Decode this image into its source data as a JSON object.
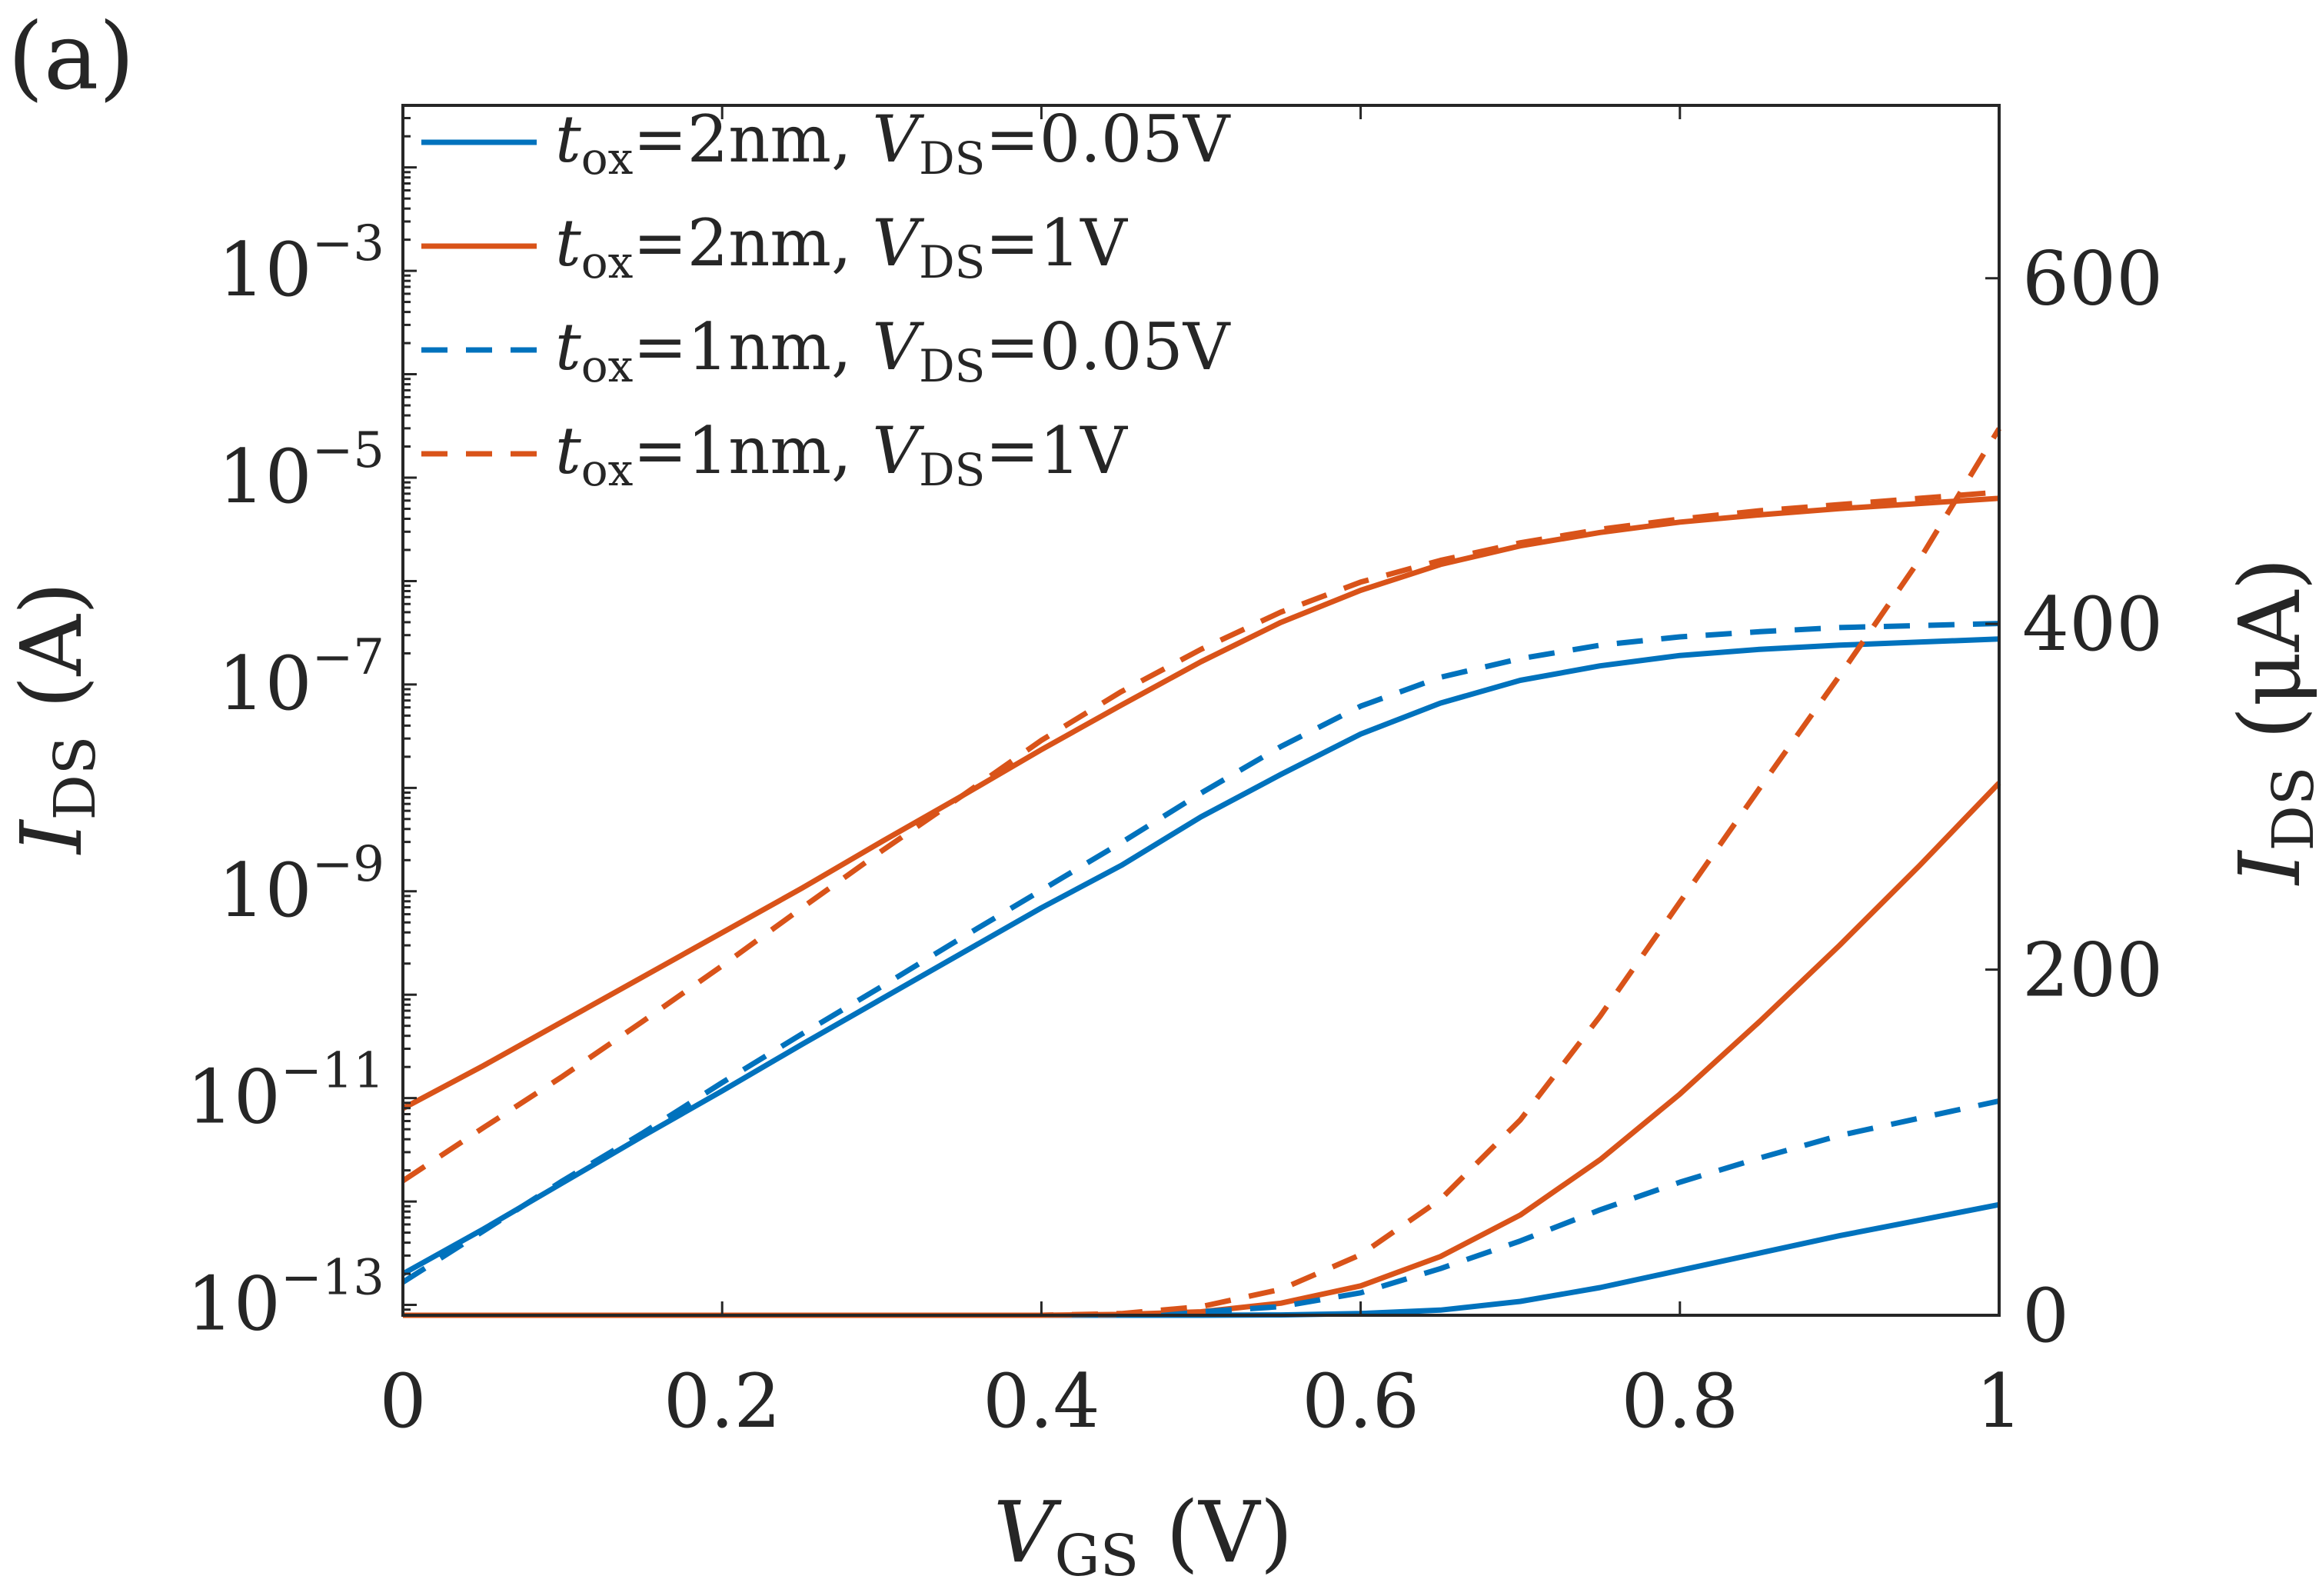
{
  "panel_label": "(a)",
  "chart_data": {
    "type": "line",
    "title": "",
    "xlabel": {
      "main": "V",
      "sub": "GS",
      "unit": " (V)"
    },
    "ylabel_left": {
      "main": "I",
      "sub": "DS",
      "unit": " (A)"
    },
    "ylabel_right": {
      "main": "I",
      "sub": "DS",
      "unit": " (μA)"
    },
    "xlim": [
      0,
      1
    ],
    "ylim_left_log10": [
      -13.1,
      -1.4
    ],
    "ylim_right": [
      0,
      700
    ],
    "y_left_scale": "log",
    "grid": false,
    "legend_position": "top-left",
    "x_ticks": [
      0,
      0.2,
      0.4,
      0.6,
      0.8,
      1
    ],
    "x_tick_labels": [
      "0",
      "0.2",
      "0.4",
      "0.6",
      "0.8",
      "1"
    ],
    "y_left_ticks": [
      {
        "base": "10",
        "exp": "−13",
        "log10": -13
      },
      {
        "base": "10",
        "exp": "−11",
        "log10": -11
      },
      {
        "base": "10",
        "exp": "−9",
        "log10": -9
      },
      {
        "base": "10",
        "exp": "−7",
        "log10": -7
      },
      {
        "base": "10",
        "exp": "−5",
        "log10": -5
      },
      {
        "base": "10",
        "exp": "−3",
        "log10": -3
      }
    ],
    "y_right_ticks": [
      0,
      200,
      400,
      600
    ],
    "y_right_tick_labels": [
      "0",
      "200",
      "400",
      "600"
    ],
    "x": [
      0,
      0.05,
      0.1,
      0.15,
      0.2,
      0.25,
      0.3,
      0.35,
      0.4,
      0.45,
      0.5,
      0.55,
      0.6,
      0.65,
      0.7,
      0.75,
      0.8,
      0.85,
      0.9,
      0.95,
      1.0
    ],
    "series": [
      {
        "legend": {
          "var": "t",
          "var_sub": "ox",
          "eq1": "=2nm, ",
          "var2": "V",
          "var2_sub": "DS",
          "eq2": "=0.05V"
        },
        "color": "#0072BD",
        "dash": "solid",
        "log_values": [
          -12.7,
          -12.27,
          -11.82,
          -11.37,
          -10.93,
          -10.48,
          -10.04,
          -9.6,
          -9.16,
          -8.75,
          -8.28,
          -7.87,
          -7.48,
          -7.18,
          -6.96,
          -6.82,
          -6.72,
          -6.66,
          -6.62,
          -6.59,
          -6.56
        ],
        "linear_values": [
          0,
          0,
          0,
          0,
          0,
          0,
          0,
          0,
          0,
          0,
          0,
          0.2,
          1.0,
          3.0,
          8.0,
          16.0,
          26.0,
          36.0,
          46.0,
          55.0,
          64.0
        ]
      },
      {
        "legend": {
          "var": "t",
          "var_sub": "ox",
          "eq1": "=2nm, ",
          "var2": "V",
          "var2_sub": "DS",
          "eq2": "=1V"
        },
        "color": "#D95319",
        "dash": "solid",
        "log_values": [
          -11.1,
          -10.69,
          -10.26,
          -9.83,
          -9.4,
          -8.97,
          -8.52,
          -8.08,
          -7.63,
          -7.2,
          -6.78,
          -6.4,
          -6.09,
          -5.84,
          -5.66,
          -5.53,
          -5.43,
          -5.36,
          -5.3,
          -5.25,
          -5.2
        ],
        "linear_values": [
          0,
          0,
          0,
          0,
          0,
          0,
          0,
          0,
          0,
          0.5,
          2.0,
          7.0,
          17.0,
          34.0,
          58.0,
          90.0,
          128.0,
          170.0,
          214.0,
          260.0,
          308.0
        ]
      },
      {
        "legend": {
          "var": "t",
          "var_sub": "ox",
          "eq1": "=1nm, ",
          "var2": "V",
          "var2_sub": "DS",
          "eq2": "=0.05V"
        },
        "color": "#0072BD",
        "dash": "dashed",
        "log_values": [
          -12.78,
          -12.29,
          -11.8,
          -11.34,
          -10.85,
          -10.38,
          -9.92,
          -9.45,
          -8.99,
          -8.53,
          -8.05,
          -7.6,
          -7.21,
          -6.93,
          -6.75,
          -6.62,
          -6.54,
          -6.49,
          -6.45,
          -6.43,
          -6.41
        ],
        "linear_values": [
          0,
          0,
          0,
          0,
          0,
          0,
          0,
          0,
          0,
          0.5,
          2.0,
          5.0,
          13.0,
          27.0,
          43.0,
          61.0,
          77.0,
          91.0,
          104.0,
          114.0,
          124.0
        ]
      },
      {
        "legend": {
          "var": "t",
          "var_sub": "ox",
          "eq1": "=1nm, ",
          "var2": "V",
          "var2_sub": "DS",
          "eq2": "=1V"
        },
        "color": "#D95319",
        "dash": "dashed",
        "log_values": [
          -11.8,
          -11.29,
          -10.79,
          -10.26,
          -9.72,
          -9.16,
          -8.61,
          -8.08,
          -7.54,
          -7.07,
          -6.66,
          -6.3,
          -6.01,
          -5.8,
          -5.63,
          -5.5,
          -5.4,
          -5.32,
          -5.26,
          -5.2,
          -5.14
        ],
        "linear_values": [
          0,
          0,
          0,
          0,
          0,
          0,
          0,
          0,
          0,
          1.0,
          5.0,
          15.0,
          35.0,
          67.0,
          113.0,
          173.0,
          239.0,
          305.0,
          370.0,
          437.0,
          513.0
        ]
      }
    ]
  }
}
